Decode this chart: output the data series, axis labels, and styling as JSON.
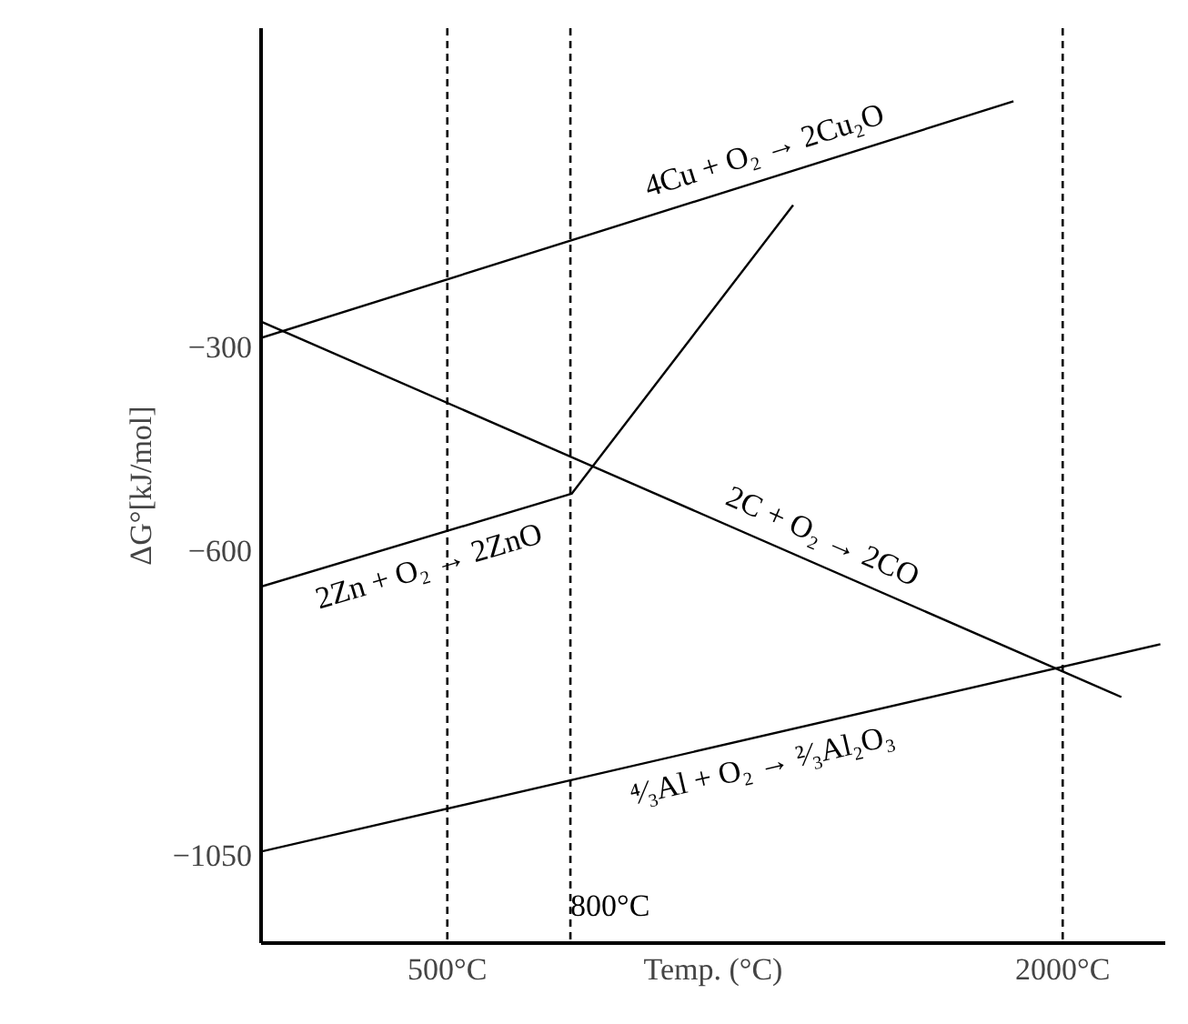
{
  "chart_data": {
    "type": "line",
    "xlabel": "Temp. (°C)",
    "ylabel": "ΔG°[kJ/mol]",
    "xlim": [
      46,
      2250
    ],
    "ylim": [
      -1180,
      170
    ],
    "xticks": [
      {
        "value": 500,
        "label": "500°C"
      },
      {
        "value": 2000,
        "label": "2000°C"
      }
    ],
    "yticks": [
      {
        "value": -300,
        "label": "−300"
      },
      {
        "value": -600,
        "label": "−600"
      },
      {
        "value": -1050,
        "label": "−1050"
      }
    ],
    "grid": false,
    "marker": "none",
    "line_style": "solid",
    "series": [
      {
        "color": "#000000",
        "x": [
          46,
          1880
        ],
        "values": [
          -287,
          62
        ]
      },
      {
        "color": "#000000",
        "x": [
          46,
          2143
        ],
        "values": [
          -263,
          -817
        ]
      },
      {
        "color": "#000000",
        "x": [
          46,
          803,
          1343
        ],
        "values": [
          -654,
          -517,
          -91
        ]
      },
      {
        "color": "#000000",
        "x": [
          46,
          2238
        ],
        "values": [
          -1045,
          -739
        ]
      }
    ],
    "ref_lines": [
      {
        "axis": "x",
        "value": 500,
        "color": "#000000",
        "line_style": "dashed"
      },
      {
        "axis": "x",
        "value": 800,
        "color": "#000000",
        "line_style": "dashed"
      },
      {
        "axis": "x",
        "value": 2000,
        "color": "#000000",
        "line_style": "dashed"
      }
    ],
    "annotations": [
      "4Cu + O₂ → 2Cu₂O",
      "2C + O₂ → 2CO",
      "2Zn + O₂ → 2ZnO",
      "⁴⁄₃Al + O₂ → ²⁄₃Al₂O₃",
      {
        "text": "800°C",
        "x": 800,
        "y": -1150
      }
    ]
  }
}
